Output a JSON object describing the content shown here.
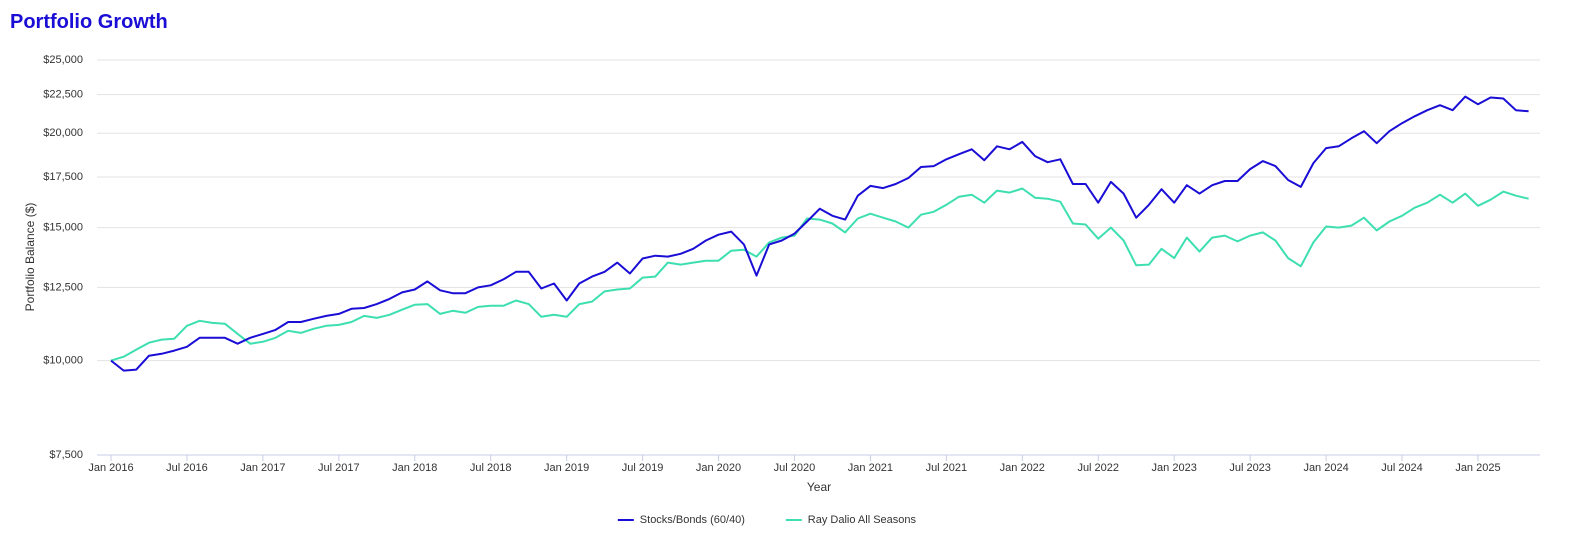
{
  "chart_data": {
    "type": "line",
    "title": "Portfolio Growth",
    "xlabel": "Year",
    "ylabel": "Portfolio Balance ($)",
    "yscale": "log",
    "legend": "bottom",
    "grid": true,
    "ylim": [
      7500,
      25000
    ],
    "yticks": [
      {
        "value": 7500,
        "label": "$7,500"
      },
      {
        "value": 10000,
        "label": "$10,000"
      },
      {
        "value": 12500,
        "label": "$12,500"
      },
      {
        "value": 15000,
        "label": "$15,000"
      },
      {
        "value": 17500,
        "label": "$17,500"
      },
      {
        "value": 20000,
        "label": "$20,000"
      },
      {
        "value": 22500,
        "label": "$22,500"
      },
      {
        "value": 25000,
        "label": "$25,000"
      }
    ],
    "x": [
      "2016-01",
      "2016-02",
      "2016-03",
      "2016-04",
      "2016-05",
      "2016-06",
      "2016-07",
      "2016-08",
      "2016-09",
      "2016-10",
      "2016-11",
      "2016-12",
      "2017-01",
      "2017-02",
      "2017-03",
      "2017-04",
      "2017-05",
      "2017-06",
      "2017-07",
      "2017-08",
      "2017-09",
      "2017-10",
      "2017-11",
      "2017-12",
      "2018-01",
      "2018-02",
      "2018-03",
      "2018-04",
      "2018-05",
      "2018-06",
      "2018-07",
      "2018-08",
      "2018-09",
      "2018-10",
      "2018-11",
      "2018-12",
      "2019-01",
      "2019-02",
      "2019-03",
      "2019-04",
      "2019-05",
      "2019-06",
      "2019-07",
      "2019-08",
      "2019-09",
      "2019-10",
      "2019-11",
      "2019-12",
      "2020-01",
      "2020-02",
      "2020-03",
      "2020-04",
      "2020-05",
      "2020-06",
      "2020-07",
      "2020-08",
      "2020-09",
      "2020-10",
      "2020-11",
      "2020-12",
      "2021-01",
      "2021-02",
      "2021-03",
      "2021-04",
      "2021-05",
      "2021-06",
      "2021-07",
      "2021-08",
      "2021-09",
      "2021-10",
      "2021-11",
      "2021-12",
      "2022-01",
      "2022-02",
      "2022-03",
      "2022-04",
      "2022-05",
      "2022-06",
      "2022-07",
      "2022-08",
      "2022-09",
      "2022-10",
      "2022-11",
      "2022-12",
      "2023-01",
      "2023-02",
      "2023-03",
      "2023-04",
      "2023-05",
      "2023-06",
      "2023-07",
      "2023-08",
      "2023-09",
      "2023-10",
      "2023-11",
      "2023-12",
      "2024-01",
      "2024-02",
      "2024-03",
      "2024-04",
      "2024-05",
      "2024-06",
      "2024-07",
      "2024-08",
      "2024-09",
      "2024-10",
      "2024-11",
      "2024-12",
      "2025-01",
      "2025-02",
      "2025-03",
      "2025-04",
      "2025-05"
    ],
    "xticks": [
      {
        "value": "2016-01",
        "label": "Jan 2016"
      },
      {
        "value": "2016-07",
        "label": "Jul 2016"
      },
      {
        "value": "2017-01",
        "label": "Jan 2017"
      },
      {
        "value": "2017-07",
        "label": "Jul 2017"
      },
      {
        "value": "2018-01",
        "label": "Jan 2018"
      },
      {
        "value": "2018-07",
        "label": "Jul 2018"
      },
      {
        "value": "2019-01",
        "label": "Jan 2019"
      },
      {
        "value": "2019-07",
        "label": "Jul 2019"
      },
      {
        "value": "2020-01",
        "label": "Jan 2020"
      },
      {
        "value": "2020-07",
        "label": "Jul 2020"
      },
      {
        "value": "2021-01",
        "label": "Jan 2021"
      },
      {
        "value": "2021-07",
        "label": "Jul 2021"
      },
      {
        "value": "2022-01",
        "label": "Jan 2022"
      },
      {
        "value": "2022-07",
        "label": "Jul 2022"
      },
      {
        "value": "2023-01",
        "label": "Jan 2023"
      },
      {
        "value": "2023-07",
        "label": "Jul 2023"
      },
      {
        "value": "2024-01",
        "label": "Jan 2024"
      },
      {
        "value": "2024-07",
        "label": "Jul 2024"
      },
      {
        "value": "2025-01",
        "label": "Jan 2025"
      }
    ],
    "series": [
      {
        "name": "Stocks/Bonds (60/40)",
        "color": "#1a0dd6",
        "values": [
          10000,
          9700,
          9730,
          10150,
          10210,
          10310,
          10430,
          10720,
          10720,
          10720,
          10530,
          10720,
          10850,
          10980,
          11250,
          11250,
          11360,
          11460,
          11530,
          11710,
          11740,
          11880,
          12070,
          12310,
          12420,
          12730,
          12390,
          12280,
          12280,
          12500,
          12580,
          12810,
          13110,
          13110,
          12460,
          12650,
          12010,
          12650,
          12920,
          13110,
          13480,
          13040,
          13650,
          13770,
          13730,
          13850,
          14060,
          14420,
          14680,
          14820,
          14250,
          12960,
          14250,
          14420,
          14730,
          15280,
          15890,
          15550,
          15370,
          16530,
          17030,
          16920,
          17130,
          17450,
          18040,
          18090,
          18470,
          18760,
          19040,
          18420,
          19220,
          19040,
          19480,
          18650,
          18310,
          18470,
          17130,
          17130,
          16180,
          17240,
          16640,
          15460,
          16080,
          16860,
          16180,
          17070,
          16640,
          17070,
          17290,
          17290,
          17930,
          18370,
          18090,
          17340,
          16980,
          18260,
          19110,
          19220,
          19690,
          20120,
          19400,
          20120,
          20620,
          21060,
          21450,
          21780,
          21450,
          22360,
          21840,
          22300,
          22230,
          21450,
          21380
        ]
      },
      {
        "name": "Ray Dalio All Seasons",
        "color": "#3ddfb0",
        "values": [
          10000,
          10120,
          10340,
          10560,
          10660,
          10690,
          11120,
          11290,
          11220,
          11190,
          10850,
          10530,
          10590,
          10720,
          10950,
          10880,
          11020,
          11120,
          11150,
          11250,
          11460,
          11390,
          11500,
          11680,
          11860,
          11880,
          11530,
          11640,
          11570,
          11780,
          11820,
          11820,
          12010,
          11880,
          11430,
          11500,
          11430,
          11880,
          11970,
          12350,
          12420,
          12460,
          12880,
          12920,
          13480,
          13400,
          13480,
          13560,
          13560,
          13980,
          14020,
          13730,
          14340,
          14550,
          14640,
          15420,
          15370,
          15190,
          14780,
          15420,
          15650,
          15460,
          15280,
          15000,
          15600,
          15740,
          16080,
          16480,
          16580,
          16180,
          16790,
          16690,
          16900,
          16430,
          16380,
          16230,
          15190,
          15140,
          14500,
          15000,
          14420,
          13370,
          13400,
          14060,
          13670,
          14550,
          13940,
          14550,
          14640,
          14380,
          14640,
          14780,
          14420,
          13670,
          13330,
          14340,
          15050,
          15000,
          15090,
          15460,
          14870,
          15280,
          15550,
          15940,
          16180,
          16580,
          16180,
          16640,
          16030,
          16330,
          16740,
          16530,
          16380
        ]
      }
    ]
  }
}
